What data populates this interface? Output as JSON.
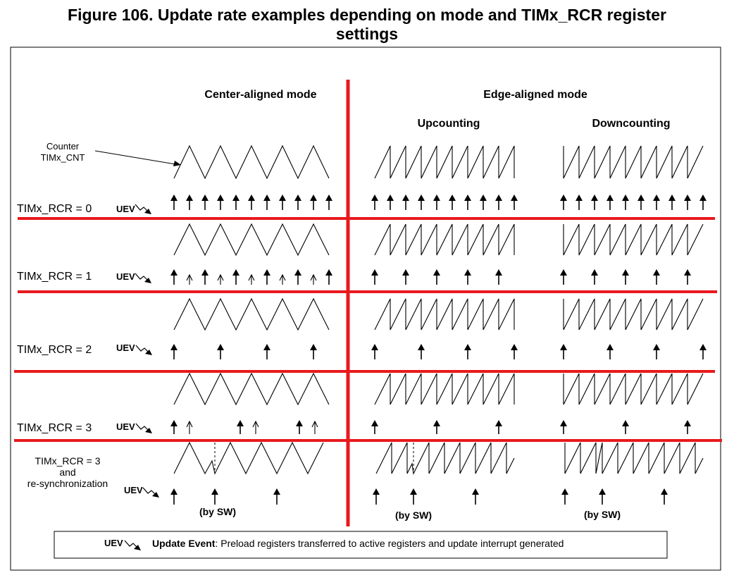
{
  "figure": {
    "title_line1": "Figure 106. Update rate examples depending on mode and TIMx_RCR register",
    "title_line2": "settings"
  },
  "headers": {
    "center": "Center-aligned mode",
    "edge": "Edge-aligned mode",
    "up": "Upcounting",
    "down": "Downcounting"
  },
  "counter_label": [
    "Counter",
    "TIMx_CNT"
  ],
  "uev": "UEV",
  "rows": [
    {
      "label": [
        "TIMx_RCR = 0"
      ]
    },
    {
      "label": [
        "TIMx_RCR = 1"
      ]
    },
    {
      "label": [
        "TIMx_RCR = 2"
      ]
    },
    {
      "label": [
        "TIMx_RCR = 3"
      ]
    },
    {
      "label": [
        "TIMx_RCR = 3",
        "and",
        "re-synchronization"
      ]
    }
  ],
  "by_sw": "(by SW)",
  "legend": {
    "uev": "UEV",
    "bold": "Update Event",
    "text": ": Preload registers transferred to active registers and update interrupt generated"
  },
  "colors": {
    "separator": "#e8191d",
    "ink": "#000000"
  }
}
